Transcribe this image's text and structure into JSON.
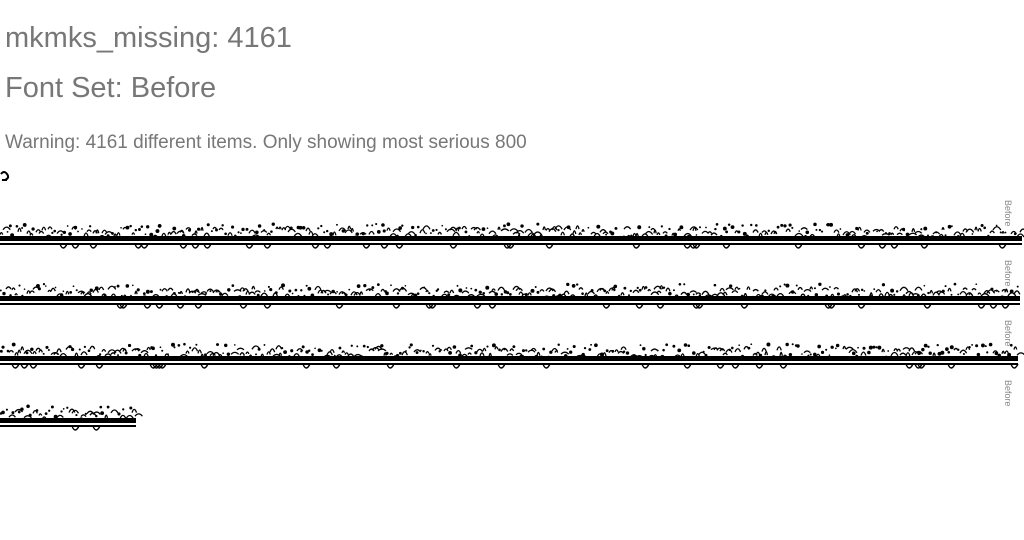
{
  "report": {
    "title": "mkmks_missing: 4161",
    "font_set": "Font Set: Before",
    "warning": "Warning: 4161 different items. Only showing most serious 800"
  },
  "rows": [
    {
      "label": "Before"
    },
    {
      "label": "Before"
    },
    {
      "label": "Before"
    },
    {
      "label": "Before"
    }
  ],
  "colors": {
    "heading": "#777777",
    "glyph_ink": "#000000",
    "label": "#888888"
  }
}
